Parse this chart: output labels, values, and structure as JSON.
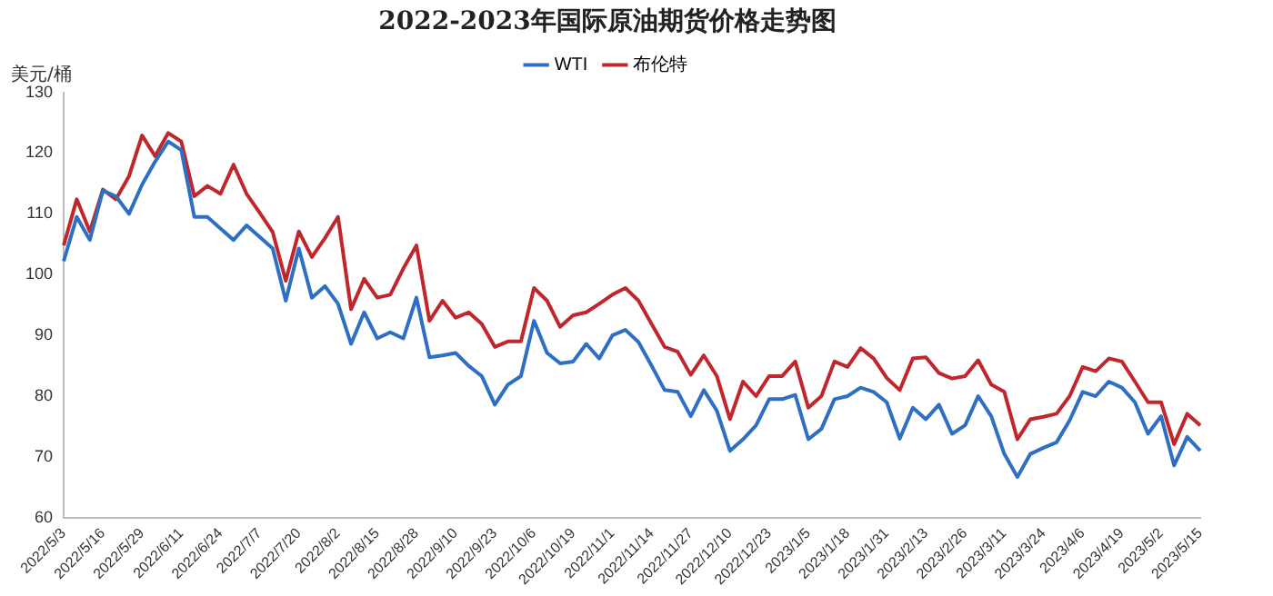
{
  "chart_data": {
    "type": "line",
    "title": "2022-2023年国际原油期货价格走势图",
    "ylabel": "美元/桶",
    "categories": [
      "2022/5/3",
      null,
      null,
      "2022/5/16",
      null,
      null,
      "2022/5/29",
      null,
      null,
      "2022/6/11",
      null,
      null,
      "2022/6/24",
      null,
      null,
      "2022/7/7",
      null,
      null,
      "2022/7/20",
      null,
      null,
      "2022/8/2",
      null,
      null,
      "2022/8/15",
      null,
      null,
      "2022/8/28",
      null,
      null,
      "2022/9/10",
      null,
      null,
      "2022/9/23",
      null,
      null,
      "2022/10/6",
      null,
      null,
      "2022/10/19",
      null,
      null,
      "2022/11/1",
      null,
      null,
      "2022/11/14",
      null,
      null,
      "2022/11/27",
      null,
      null,
      "2022/12/10",
      null,
      null,
      "2022/12/23",
      null,
      null,
      "2023/1/5",
      null,
      null,
      "2023/1/18",
      null,
      null,
      "2023/1/31",
      null,
      null,
      "2023/2/13",
      null,
      null,
      "2023/2/26",
      null,
      null,
      "2023/3/11",
      null,
      null,
      "2023/3/24",
      null,
      null,
      "2023/4/6",
      null,
      null,
      "2023/4/19",
      null,
      null,
      "2023/5/2",
      null,
      null,
      "2023/5/15"
    ],
    "series": [
      {
        "name": "WTI",
        "color": "#2e6fc4",
        "values": [
          102.2,
          109.5,
          105.7,
          113.8,
          112.9,
          110,
          114.8,
          118.6,
          121.9,
          120.5,
          109.5,
          109.5,
          107.6,
          105.7,
          108.1,
          106.2,
          104.3,
          95.7,
          104.3,
          96.2,
          98.1,
          95.2,
          88.6,
          93.8,
          89.5,
          90.5,
          89.5,
          96.2,
          86.4,
          86.7,
          87.1,
          85,
          83.3,
          78.6,
          81.9,
          83.3,
          92.4,
          87.1,
          85.4,
          85.7,
          88.6,
          86.2,
          90,
          90.9,
          88.9,
          85,
          81,
          80.7,
          76.7,
          81,
          77.6,
          71,
          72.9,
          75.2,
          79.5,
          79.5,
          80.2,
          72.9,
          74.6,
          79.5,
          80,
          81.4,
          80.7,
          79,
          73,
          78.1,
          76.2,
          78.6,
          73.8,
          75.2,
          80,
          76.7,
          70.5,
          66.7,
          70.5,
          71.5,
          72.4,
          76,
          80.7,
          80,
          82.4,
          81.4,
          79,
          73.8,
          76.7,
          68.6,
          73.3,
          71
        ]
      },
      {
        "name": "布伦特",
        "color": "#c0272d",
        "values": [
          104.8,
          112.4,
          107.1,
          114,
          112.4,
          116.2,
          122.9,
          119.5,
          123.3,
          121.9,
          112.9,
          114.6,
          113.3,
          118.1,
          113.3,
          110.2,
          107,
          99,
          107.1,
          102.9,
          106,
          109.5,
          94.3,
          99.3,
          96.2,
          96.7,
          101,
          104.8,
          92.4,
          95.7,
          92.9,
          93.8,
          91.9,
          88.1,
          89,
          89,
          97.8,
          95.7,
          91.4,
          93.3,
          93.8,
          95.2,
          96.7,
          97.8,
          95.7,
          91.9,
          88.1,
          87.3,
          83.5,
          86.7,
          83.3,
          76.2,
          82.4,
          80,
          83.3,
          83.3,
          85.7,
          78.1,
          80,
          85.7,
          84.8,
          87.9,
          86.2,
          83,
          81,
          86.2,
          86.4,
          83.8,
          82.9,
          83.3,
          85.9,
          81.9,
          80.7,
          72.9,
          76.2,
          76.6,
          77.1,
          80,
          84.8,
          84.1,
          86.2,
          85.7,
          82.4,
          79,
          79,
          72.1,
          77.1,
          75.2
        ]
      }
    ],
    "ylim": [
      60,
      130
    ],
    "yticks": [
      60,
      70,
      80,
      90,
      100,
      110,
      120,
      130
    ],
    "grid": false,
    "legend": "top",
    "marker": "none",
    "line_style": "solid"
  }
}
